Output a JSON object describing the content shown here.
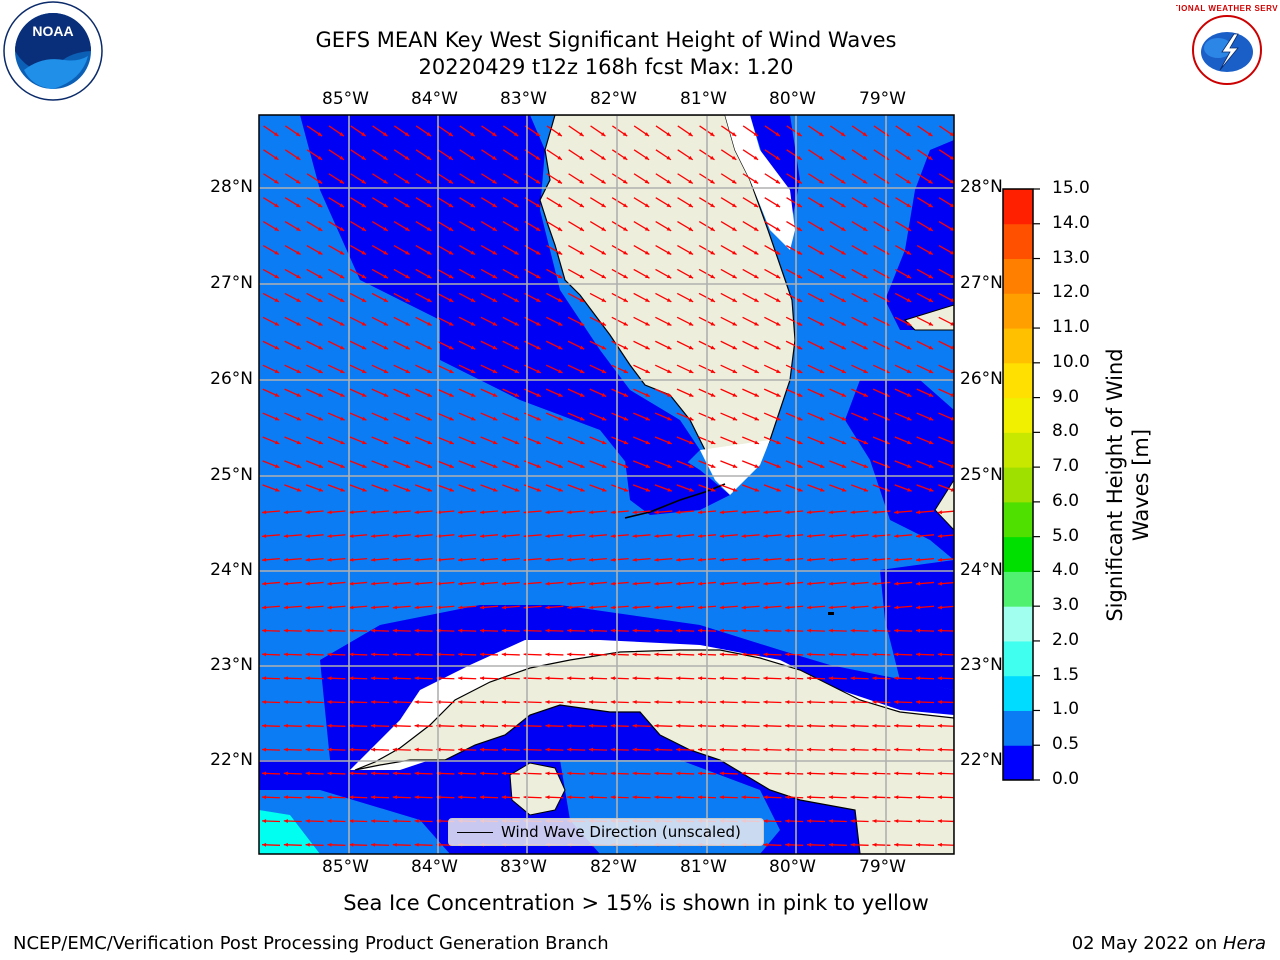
{
  "title_line1": "GEFS MEAN Key West Significant Height of Wind Waves",
  "title_line2": "20220429 t12z 168h fcst   Max: 1.20",
  "lon_labels": [
    "85°W",
    "84°W",
    "83°W",
    "82°W",
    "81°W",
    "80°W",
    "79°W"
  ],
  "lat_labels": [
    "28°N",
    "27°N",
    "26°N",
    "25°N",
    "24°N",
    "23°N",
    "22°N"
  ],
  "legend_label": "Wind Wave Direction (unscaled)",
  "colorbar": {
    "title_line1": "Significant Height of Wind",
    "title_line2": "Waves [m]",
    "ticks": [
      "0.0",
      "0.5",
      "1.0",
      "1.5",
      "2.0",
      "3.0",
      "4.0",
      "5.0",
      "6.0",
      "7.0",
      "8.0",
      "9.0",
      "10.0",
      "11.0",
      "12.0",
      "13.0",
      "14.0",
      "15.0"
    ],
    "colors": [
      "#0000ff",
      "#0c7cf4",
      "#00dcff",
      "#40ffee",
      "#a0ffee",
      "#50f070",
      "#00e000",
      "#50e000",
      "#a0e000",
      "#c8e800",
      "#f0f000",
      "#ffe000",
      "#ffc000",
      "#ffa000",
      "#ff8000",
      "#ff5000",
      "#ff2000"
    ]
  },
  "map_colors": {
    "land": "#eeeedc",
    "deep": "#0000f5",
    "mid": "#0c7cf4",
    "cyan": "#00fff0",
    "arrow": "#ff0000"
  },
  "note": "Sea Ice Concentration > 15% is shown in pink to yellow",
  "footer_left": "NCEP/EMC/Verification Post Processing Product Generation Branch",
  "footer_date": "02 May 2022 on ",
  "footer_machine": "Hera",
  "logos": {
    "left": "noaa-logo",
    "right": "nws-logo",
    "noaa_text": "NOAA",
    "nws_text": "NATIONAL WEATHER SERVICE"
  }
}
